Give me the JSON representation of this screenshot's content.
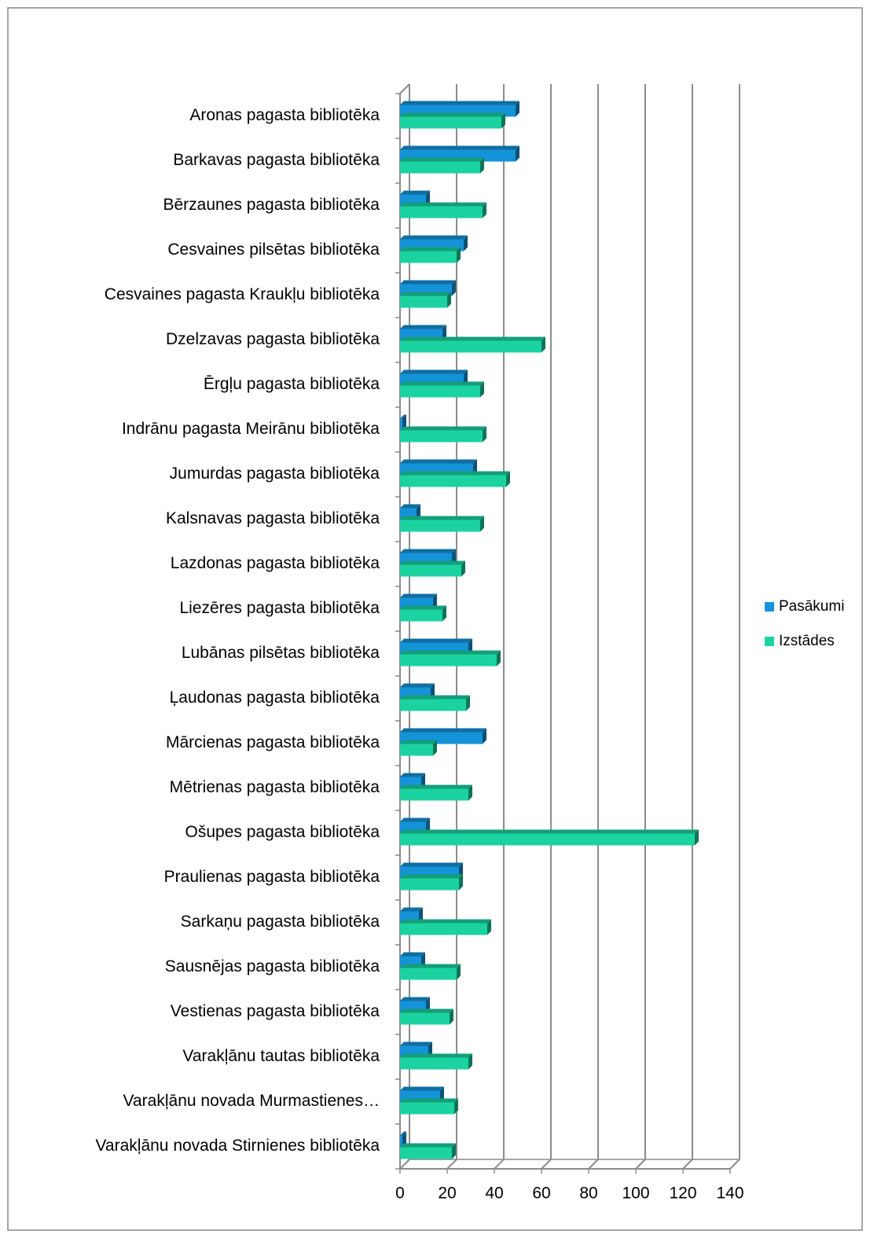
{
  "chart_data": {
    "type": "bar3d_horizontal",
    "categories": [
      "Aronas pagasta bibliotēka",
      "Barkavas pagasta bibliotēka",
      "Bērzaunes pagasta bibliotēka",
      "Cesvaines pilsētas bibliotēka",
      "Cesvaines pagasta  Kraukļu bibliotēka",
      "Dzelzavas pagasta  bibliotēka",
      "Ērgļu  pagasta bibliotēka",
      "Indrānu pagasta Meirānu bibliotēka",
      "Jumurdas pagasta bibliotēka",
      "Kalsnavas pagasta bibliotēka",
      "Lazdonas pagasta bibliotēka",
      "Liezēres pagasta bibliotēka",
      "Lubānas pilsētas bibliotēka",
      "Ļaudonas pagasta bibliotēka",
      "Mārcienas pagasta bibliotēka",
      "Mētrienas pagasta bibliotēka",
      "Ošupes pagasta  bibliotēka",
      "Praulienas pagasta bibliotēka",
      "Sarkaņu pagasta bibliotēka",
      "Sausnējas pagasta bibliotēka",
      "Vestienas  pagasta bibliotēka",
      "Varakļānu  tautas bibliotēka",
      "Varakļānu novada Murmastienes…",
      "Varakļānu novada Stirnienes bibliotēka"
    ],
    "series": [
      {
        "name": "Pasākumi",
        "color": "#1593d8",
        "values": [
          49,
          49,
          11,
          27,
          22,
          18,
          27,
          1,
          31,
          7,
          22,
          14,
          29,
          13,
          35,
          9,
          11,
          25,
          8,
          9,
          11,
          12,
          17,
          1
        ]
      },
      {
        "name": "Izstādes",
        "color": "#1ad3a0",
        "values": [
          43,
          34,
          35,
          24,
          20,
          60,
          34,
          35,
          45,
          34,
          26,
          18,
          41,
          28,
          14,
          29,
          125,
          25,
          37,
          24,
          21,
          29,
          23,
          22
        ]
      }
    ],
    "xlim": [
      0,
      140
    ],
    "xticks": [
      0,
      20,
      40,
      60,
      80,
      100,
      120,
      140
    ],
    "grid": true,
    "legend": "right"
  }
}
